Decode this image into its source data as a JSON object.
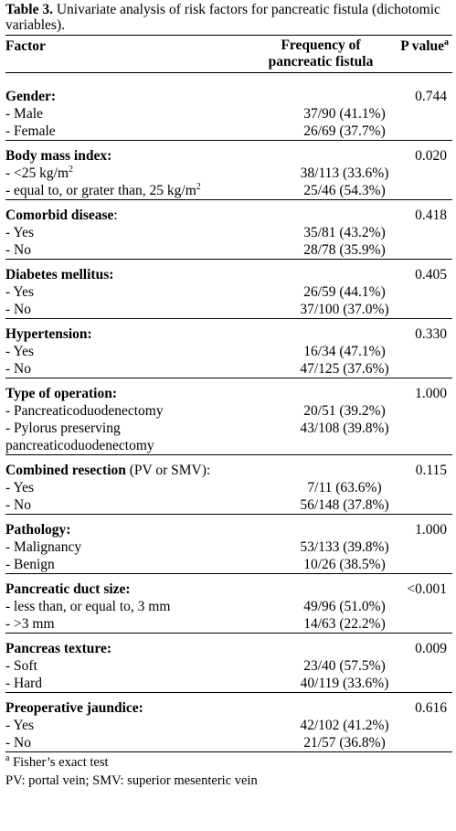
{
  "caption": {
    "label": "Table 3.",
    "text": " Univariate analysis of risk factors for pancreatic fistula (dichotomic variables)."
  },
  "header": {
    "factor": "Factor",
    "frequency_line1": "Frequency of",
    "frequency_line2": "pancreatic fistula",
    "pvalue": "P value",
    "pvalue_sup": "a"
  },
  "groups": [
    {
      "name": "Gender:",
      "name_extra": "",
      "p": "0.744",
      "rows": [
        {
          "label": "- Male",
          "sup": "",
          "freq": "37/90 (41.1%)"
        },
        {
          "label": "- Female",
          "sup": "",
          "freq": "26/69 (37.7%)"
        }
      ]
    },
    {
      "name": "Body mass index:",
      "name_extra": "",
      "p": "0.020",
      "rows": [
        {
          "label": "- <25 kg/m",
          "sup": "2",
          "freq": "38/113 (33.6%)"
        },
        {
          "label": "- equal to, or grater than, 25 kg/m",
          "sup": "2",
          "freq": "25/46 (54.3%)"
        }
      ]
    },
    {
      "name": "Comorbid disease",
      "name_extra": ":",
      "p": "0.418",
      "rows": [
        {
          "label": "- Yes",
          "sup": "",
          "freq": "35/81 (43.2%)"
        },
        {
          "label": "- No",
          "sup": "",
          "freq": "28/78 (35.9%)"
        }
      ]
    },
    {
      "name": "Diabetes mellitus:",
      "name_extra": "",
      "p": "0.405",
      "rows": [
        {
          "label": "- Yes",
          "sup": "",
          "freq": "26/59 (44.1%)"
        },
        {
          "label": "- No",
          "sup": "",
          "freq": "37/100 (37.0%)"
        }
      ]
    },
    {
      "name": "Hypertension:",
      "name_extra": "",
      "p": "0.330",
      "rows": [
        {
          "label": "- Yes",
          "sup": "",
          "freq": "16/34 (47.1%)"
        },
        {
          "label": "- No",
          "sup": "",
          "freq": "47/125 (37.6%)"
        }
      ]
    },
    {
      "name": "Type of operation:",
      "name_extra": "",
      "p": "1.000",
      "rows": [
        {
          "label": "- Pancreaticoduodenectomy",
          "sup": "",
          "freq": "20/51 (39.2%)"
        },
        {
          "label": "- Pylorus preserving",
          "label2": "pancreaticoduodenectomy",
          "sup": "",
          "freq": "43/108 (39.8%)"
        }
      ]
    },
    {
      "name": "Combined resection",
      "name_extra": " (PV or SMV):",
      "p": "0.115",
      "rows": [
        {
          "label": "- Yes",
          "sup": "",
          "freq": "7/11 (63.6%)"
        },
        {
          "label": "- No",
          "sup": "",
          "freq": "56/148 (37.8%)"
        }
      ]
    },
    {
      "name": "Pathology:",
      "name_extra": "",
      "p": "1.000",
      "rows": [
        {
          "label": "- Malignancy",
          "sup": "",
          "freq": "53/133 (39.8%)"
        },
        {
          "label": "- Benign",
          "sup": "",
          "freq": "10/26 (38.5%)"
        }
      ]
    },
    {
      "name": "Pancreatic duct size:",
      "name_extra": "",
      "p": "<0.001",
      "rows": [
        {
          "label": "- less than, or equal to, 3 mm",
          "sup": "",
          "freq": "49/96 (51.0%)"
        },
        {
          "label": "- >3 mm",
          "sup": "",
          "freq": "14/63 (22.2%)"
        }
      ]
    },
    {
      "name": "Pancreas texture:",
      "name_extra": "",
      "p": "0.009",
      "rows": [
        {
          "label": "- Soft",
          "sup": "",
          "freq": "23/40 (57.5%)"
        },
        {
          "label": "- Hard",
          "sup": "",
          "freq": "40/119 (33.6%)"
        }
      ]
    },
    {
      "name": "Preoperative jaundice:",
      "name_extra": "",
      "p": "0.616",
      "rows": [
        {
          "label": "- Yes",
          "sup": "",
          "freq": "42/102 (41.2%)"
        },
        {
          "label": "- No",
          "sup": "",
          "freq": "21/57 (36.8%)"
        }
      ]
    }
  ],
  "footnotes": {
    "a_sup": "a",
    "a_text": " Fisher’s exact test",
    "abbrev": "PV: portal vein; SMV: superior mesenteric vein"
  }
}
